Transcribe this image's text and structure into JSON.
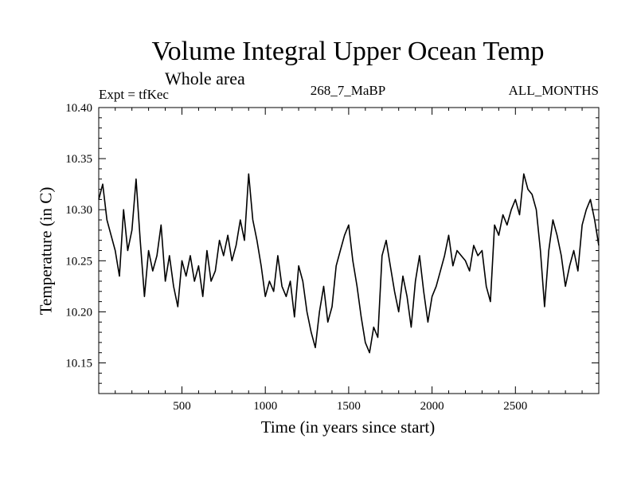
{
  "chart_data": {
    "type": "line",
    "title": "Volume Integral Upper Ocean Temp",
    "subtitle": "Whole area",
    "annotations": {
      "experiment": "Expt = tfKec",
      "run": "268_7_MaBP",
      "months": "ALL_MONTHS"
    },
    "xlabel": "Time (in years since start)",
    "ylabel": "Temperature (in C)",
    "xlim": [
      1,
      3000
    ],
    "ylim": [
      10.12,
      10.4
    ],
    "x_ticks": [
      500,
      1000,
      1500,
      2000,
      2500
    ],
    "x_tick_labels": [
      "500",
      "1000",
      "1500",
      "2000",
      "2500"
    ],
    "y_ticks": [
      10.15,
      10.2,
      10.25,
      10.3,
      10.35,
      10.4
    ],
    "y_tick_labels": [
      "10.15",
      "10.20",
      "10.25",
      "10.30",
      "10.35",
      "10.40"
    ],
    "grid": false,
    "series": [
      {
        "color": "#000000",
        "x": [
          1,
          25,
          50,
          75,
          100,
          125,
          150,
          175,
          200,
          225,
          250,
          275,
          300,
          325,
          350,
          375,
          400,
          425,
          450,
          475,
          500,
          525,
          550,
          575,
          600,
          625,
          650,
          675,
          700,
          725,
          750,
          775,
          800,
          825,
          850,
          875,
          900,
          925,
          950,
          975,
          1000,
          1025,
          1050,
          1075,
          1100,
          1125,
          1150,
          1175,
          1200,
          1225,
          1250,
          1275,
          1300,
          1325,
          1350,
          1375,
          1400,
          1425,
          1450,
          1475,
          1500,
          1525,
          1550,
          1575,
          1600,
          1625,
          1650,
          1675,
          1700,
          1725,
          1750,
          1775,
          1800,
          1825,
          1850,
          1875,
          1900,
          1925,
          1950,
          1975,
          2000,
          2025,
          2050,
          2075,
          2100,
          2125,
          2150,
          2175,
          2200,
          2225,
          2250,
          2275,
          2300,
          2325,
          2350,
          2375,
          2400,
          2425,
          2450,
          2475,
          2500,
          2525,
          2550,
          2575,
          2600,
          2625,
          2650,
          2675,
          2700,
          2725,
          2750,
          2775,
          2800,
          2825,
          2850,
          2875,
          2900,
          2925,
          2950,
          2975,
          3000
        ],
        "values": [
          10.31,
          10.325,
          10.29,
          10.275,
          10.26,
          10.235,
          10.3,
          10.26,
          10.28,
          10.33,
          10.27,
          10.215,
          10.26,
          10.24,
          10.255,
          10.285,
          10.23,
          10.255,
          10.225,
          10.205,
          10.25,
          10.235,
          10.255,
          10.23,
          10.245,
          10.215,
          10.26,
          10.23,
          10.24,
          10.27,
          10.255,
          10.275,
          10.25,
          10.265,
          10.29,
          10.27,
          10.335,
          10.29,
          10.27,
          10.245,
          10.215,
          10.23,
          10.22,
          10.255,
          10.225,
          10.215,
          10.23,
          10.195,
          10.245,
          10.23,
          10.2,
          10.18,
          10.165,
          10.2,
          10.225,
          10.19,
          10.205,
          10.245,
          10.26,
          10.275,
          10.285,
          10.25,
          10.225,
          10.195,
          10.17,
          10.16,
          10.185,
          10.175,
          10.255,
          10.27,
          10.245,
          10.22,
          10.2,
          10.235,
          10.215,
          10.185,
          10.23,
          10.255,
          10.22,
          10.19,
          10.215,
          10.225,
          10.24,
          10.255,
          10.275,
          10.245,
          10.26,
          10.255,
          10.25,
          10.24,
          10.265,
          10.255,
          10.26,
          10.225,
          10.21,
          10.285,
          10.275,
          10.295,
          10.285,
          10.3,
          10.31,
          10.295,
          10.335,
          10.32,
          10.315,
          10.3,
          10.26,
          10.205,
          10.26,
          10.29,
          10.275,
          10.255,
          10.225,
          10.245,
          10.26,
          10.24,
          10.285,
          10.3,
          10.31,
          10.29,
          10.265
        ]
      }
    ]
  }
}
